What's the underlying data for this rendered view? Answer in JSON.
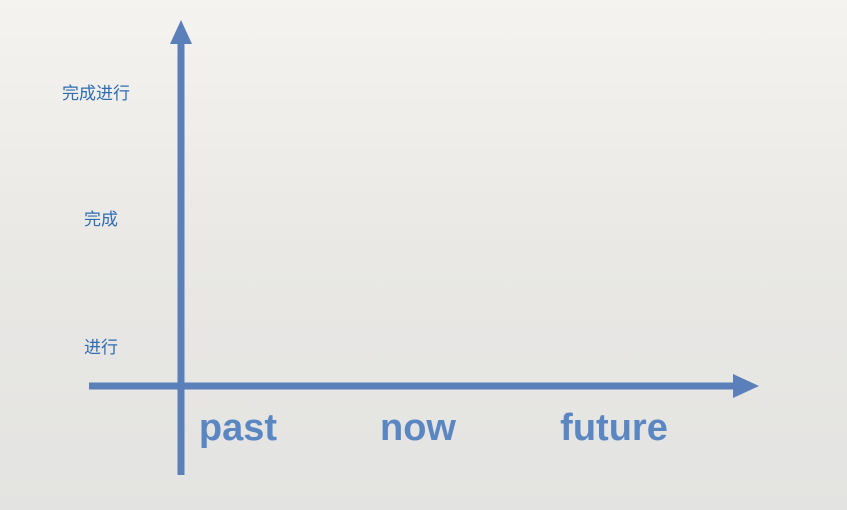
{
  "y_axis": {
    "labels": [
      "完成进行",
      "完成",
      "进行"
    ]
  },
  "x_axis": {
    "labels": [
      "past",
      "now",
      "future"
    ]
  },
  "colors": {
    "axis": "#5b7fb9",
    "y_label_text": "#2f6db3",
    "x_label_text": "#5a86c2"
  }
}
